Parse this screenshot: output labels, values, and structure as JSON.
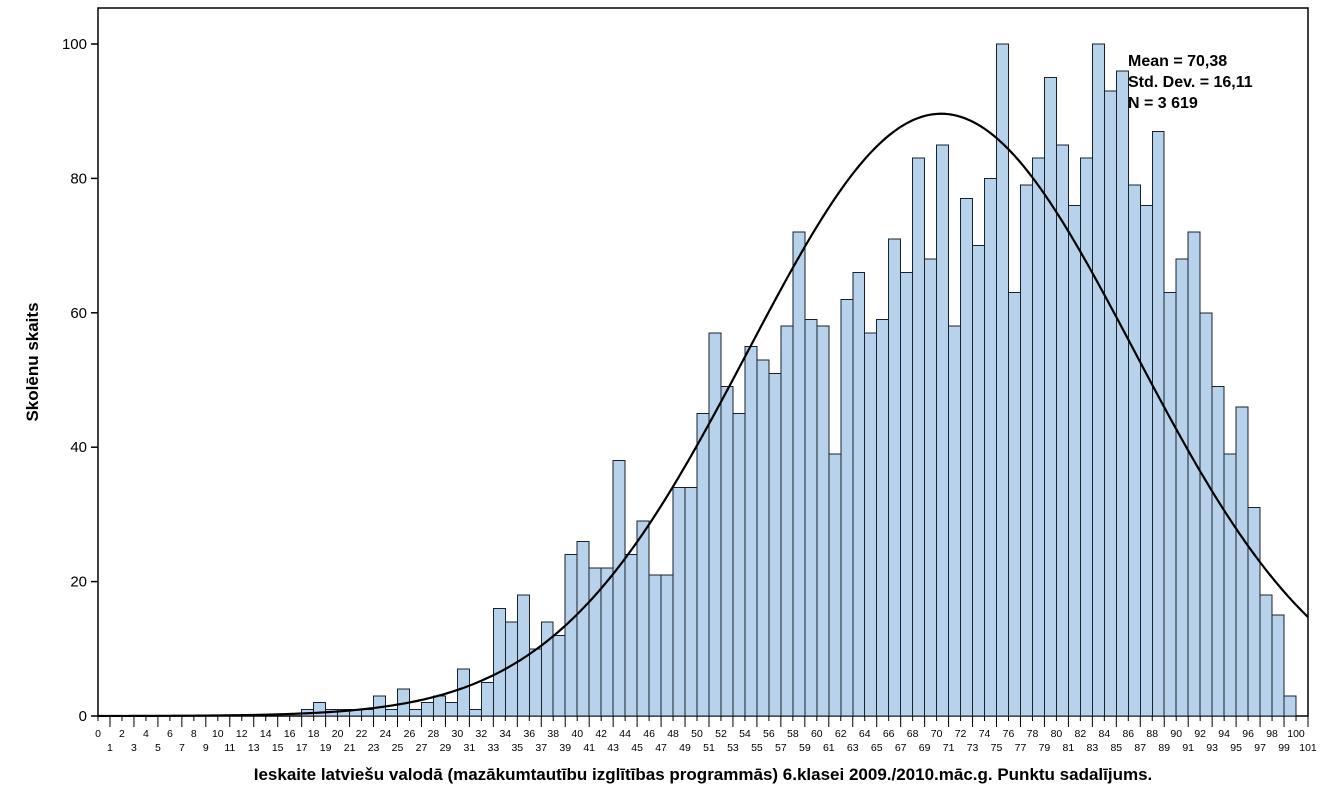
{
  "chart_data": {
    "type": "bar",
    "subtype": "histogram-with-normal-curve",
    "title": "",
    "xlabel": "Ieskaite latviešu valodā (mazākumtautību izglītības programmās) 6.klasei 2009./2010.māc.g. Punktu sadalījums.",
    "ylabel": "Skolēnu skaits",
    "x_axis": {
      "min": 0,
      "max": 101,
      "tick_step": 1,
      "tick_labels_staggered": true
    },
    "y_axis": {
      "min": 0,
      "max": 100,
      "ticks": [
        0,
        20,
        40,
        60,
        80,
        100
      ]
    },
    "categories": [
      0,
      1,
      2,
      3,
      4,
      5,
      6,
      7,
      8,
      9,
      10,
      11,
      12,
      13,
      14,
      15,
      16,
      17,
      18,
      19,
      20,
      21,
      22,
      23,
      24,
      25,
      26,
      27,
      28,
      29,
      30,
      31,
      32,
      33,
      34,
      35,
      36,
      37,
      38,
      39,
      40,
      41,
      42,
      43,
      44,
      45,
      46,
      47,
      48,
      49,
      50,
      51,
      52,
      53,
      54,
      55,
      56,
      57,
      58,
      59,
      60,
      61,
      62,
      63,
      64,
      65,
      66,
      67,
      68,
      69,
      70,
      71,
      72,
      73,
      74,
      75,
      76,
      77,
      78,
      79,
      80,
      81,
      82,
      83,
      84,
      85,
      86,
      87,
      88,
      89,
      90,
      91,
      92,
      93,
      94,
      95,
      96,
      97,
      98,
      99,
      100
    ],
    "values": [
      0,
      0,
      0,
      0,
      0,
      0,
      0,
      0,
      0,
      0,
      0,
      0,
      0,
      0,
      0,
      0,
      0,
      1,
      2,
      1,
      1,
      1,
      1,
      3,
      1,
      4,
      1,
      2,
      3,
      2,
      7,
      1,
      5,
      16,
      14,
      18,
      10,
      14,
      12,
      24,
      26,
      22,
      22,
      38,
      24,
      29,
      21,
      21,
      34,
      34,
      45,
      57,
      49,
      45,
      55,
      53,
      51,
      58,
      72,
      59,
      58,
      39,
      62,
      66,
      57,
      59,
      71,
      66,
      83,
      68,
      85,
      58,
      77,
      70,
      80,
      100,
      63,
      79,
      83,
      95,
      85,
      76,
      83,
      100,
      93,
      96,
      79,
      76,
      87,
      63,
      68,
      72,
      60,
      49,
      39,
      46,
      31,
      18,
      15,
      3,
      0
    ],
    "normal_curve": {
      "mean": 70.38,
      "std_dev": 16.11,
      "n": 3619
    },
    "stats_box": {
      "mean_label": "Mean = 70,38",
      "std_label": "Std. Dev. = 16,11",
      "n_label": "N = 3 619"
    },
    "legend_position": "none",
    "grid": false,
    "colors": {
      "bar_fill": "#b7d2ea",
      "bar_stroke": "#17222e",
      "curve": "#000000",
      "axis": "#000000",
      "background": "#ffffff"
    }
  }
}
